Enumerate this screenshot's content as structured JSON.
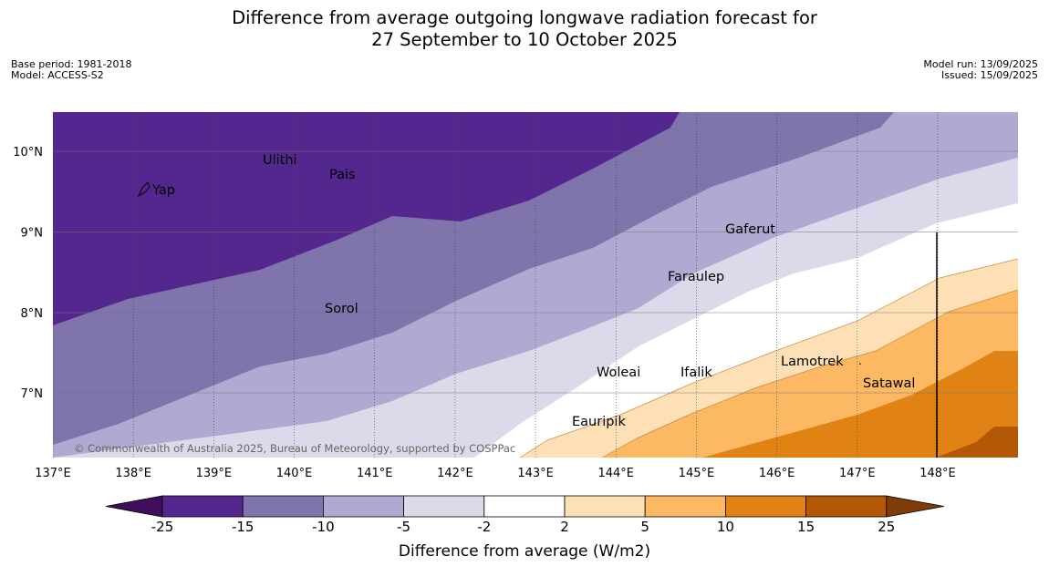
{
  "title": {
    "line1": "Difference from average outgoing longwave radiation forecast for",
    "line2": "27 September to 10 October 2025"
  },
  "meta": {
    "base_period": "Base period: 1981-2018",
    "model": "Model: ACCESS-S2",
    "model_run": "Model run: 13/09/2025",
    "issued": "Issued: 15/09/2025"
  },
  "map": {
    "lon_ticks": [
      "137°E",
      "138°E",
      "139°E",
      "140°E",
      "141°E",
      "142°E",
      "143°E",
      "144°E",
      "145°E",
      "146°E",
      "147°E",
      "148°E"
    ],
    "lat_ticks": [
      "10°N",
      "9°N",
      "8°N",
      "7°N"
    ],
    "islands": [
      {
        "name": "Ulithi"
      },
      {
        "name": "Pais"
      },
      {
        "name": "Yap"
      },
      {
        "name": "Gaferut"
      },
      {
        "name": "Faraulep"
      },
      {
        "name": "Sorol"
      },
      {
        "name": "Lamotrek"
      },
      {
        "name": "Woleai"
      },
      {
        "name": "Ifalik"
      },
      {
        "name": "Satawal"
      },
      {
        "name": "Eauripik"
      }
    ],
    "copyright": "© Commonwealth of Australia 2025, Bureau of Meteorology, supported by COSPPac"
  },
  "colorbar": {
    "title": "Difference from average (W/m2)",
    "ticks": [
      "-25",
      "-15",
      "-10",
      "-5",
      "-2",
      "2",
      "5",
      "10",
      "15",
      "25"
    ],
    "colors": [
      "#3f0f5c",
      "#54278f",
      "#7f74ab",
      "#b0aad2",
      "#dadaeb",
      "#ffffff",
      "#fee0b6",
      "#fdb863",
      "#e08214",
      "#b35806",
      "#7f3b08"
    ]
  }
}
